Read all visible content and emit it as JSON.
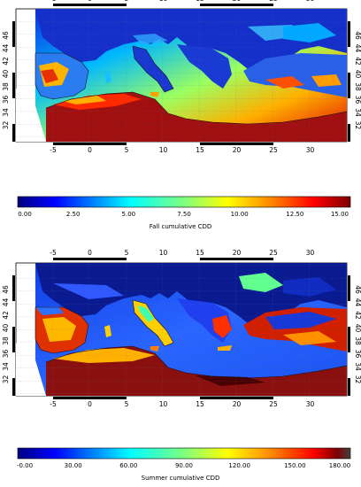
{
  "palette": {
    "jet": [
      "#00007f",
      "#0000ff",
      "#007fff",
      "#00ffff",
      "#7fff7f",
      "#ffff00",
      "#ff7f00",
      "#ff0000",
      "#7f0000"
    ],
    "land": "#8a1d12",
    "sea": "#0a2fd8",
    "coast": "#111111",
    "border": "#222222"
  },
  "maps": [
    {
      "name": "fall",
      "lon_ticks": [
        "-5",
        "0",
        "5",
        "10",
        "15",
        "20",
        "25",
        "30"
      ],
      "lat_ticks": [
        "46",
        "44",
        "42",
        "40",
        "38",
        "36",
        "34",
        "32"
      ],
      "colorbar": {
        "ticks": [
          "0.00",
          "2.50",
          "5.00",
          "7.50",
          "10.00",
          "12.50",
          "15.00"
        ],
        "label": "Fall cumulative CDD",
        "min": 0,
        "max": 15
      }
    },
    {
      "name": "summer",
      "lon_ticks": [
        "-5",
        "0",
        "5",
        "10",
        "15",
        "20",
        "25",
        "30"
      ],
      "lat_ticks": [
        "46",
        "44",
        "42",
        "40",
        "38",
        "36",
        "34",
        "32"
      ],
      "colorbar": {
        "ticks": [
          "-0.00",
          "30.00",
          "60.00",
          "90.00",
          "120.00",
          "150.00",
          "180.00"
        ],
        "label": "Summer cumulative CDD",
        "min": 0,
        "max": 180
      }
    }
  ]
}
